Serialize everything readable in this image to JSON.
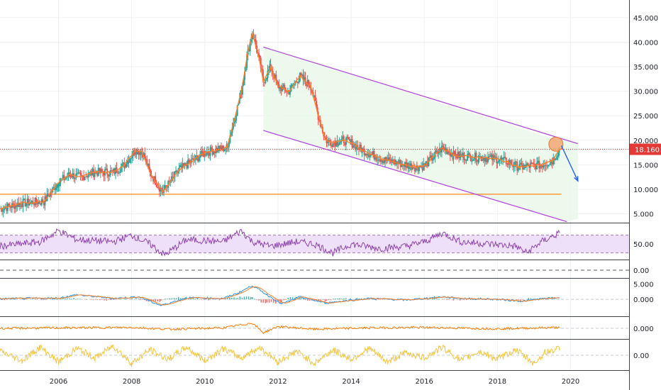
{
  "chart_data": {
    "type": "line",
    "title": "",
    "x_ticks": [
      "2006",
      "2008",
      "2010",
      "2012",
      "2014",
      "2016",
      "2018",
      "2020"
    ],
    "x_tick_values": [
      2006,
      2008,
      2010,
      2012,
      2014,
      2016,
      2018,
      2020
    ],
    "xlim": [
      2004.4,
      2021.6
    ],
    "price_panel": {
      "ylim": [
        3.2,
        48.6
      ],
      "y_ticks": [
        5,
        10,
        15,
        20,
        25,
        30,
        35,
        40,
        45
      ],
      "y_tick_labels": [
        "5.000",
        "10.000",
        "15.000",
        "20.000",
        "25.000",
        "30.000",
        "35.000",
        "40.000",
        "45.000"
      ],
      "last_price": 18.16,
      "last_price_label": "18.160",
      "series": [
        {
          "x": [
            2004.4,
            2005.0,
            2005.6,
            2006.0,
            2006.3,
            2006.6,
            2007.0,
            2007.5,
            2007.8,
            2008.1,
            2008.3,
            2008.5,
            2008.7,
            2008.85,
            2009.0,
            2009.3,
            2009.6,
            2010.0,
            2010.3,
            2010.6,
            2010.8,
            2011.0,
            2011.15,
            2011.3,
            2011.5,
            2011.6,
            2011.8,
            2012.0,
            2012.3,
            2012.6,
            2012.9,
            2013.1,
            2013.3,
            2013.5,
            2013.8,
            2014.0,
            2014.3,
            2014.6,
            2014.9,
            2015.2,
            2015.5,
            2015.8,
            2016.0,
            2016.3,
            2016.5,
            2016.8,
            2017.0,
            2017.5,
            2018.0,
            2018.3,
            2018.6,
            2018.9,
            2019.2,
            2019.5,
            2019.7
          ],
          "values": [
            6.0,
            7.2,
            7.5,
            11.5,
            13.0,
            12.5,
            13.5,
            13.5,
            15.0,
            18.0,
            17.5,
            13.5,
            11.0,
            9.5,
            11.0,
            14.0,
            15.5,
            17.5,
            18.0,
            18.5,
            24.0,
            30.0,
            37.0,
            42.0,
            36.0,
            32.0,
            35.0,
            31.0,
            30.0,
            33.0,
            31.0,
            25.0,
            20.0,
            19.5,
            20.0,
            19.5,
            18.0,
            17.0,
            16.0,
            15.5,
            15.0,
            14.5,
            14.8,
            17.0,
            18.5,
            17.0,
            16.8,
            16.5,
            16.2,
            15.5,
            14.5,
            14.8,
            15.0,
            15.8,
            18.16
          ]
        }
      ],
      "horizontal_line_value": 9.0,
      "channel_upper": [
        [
          2011.6,
          39.0
        ],
        [
          2020.2,
          19.3
        ]
      ],
      "channel_lower": [
        [
          2011.6,
          22.0
        ],
        [
          2019.9,
          3.4
        ]
      ],
      "projection_arrow": [
        [
          2019.75,
          18.9
        ],
        [
          2020.2,
          11.7
        ]
      ],
      "highlight_point": [
        2019.6,
        19.2
      ]
    },
    "rsi_panel": {
      "ylim": [
        15,
        95
      ],
      "y_ticks": [
        50
      ],
      "y_tick_labels": [
        "50.00"
      ],
      "band": [
        30,
        70
      ],
      "x": [
        2004.4,
        2005.5,
        2006.0,
        2006.5,
        2007.5,
        2008.0,
        2008.5,
        2008.9,
        2009.5,
        2010.5,
        2011.0,
        2011.3,
        2011.8,
        2012.5,
        2013.0,
        2013.5,
        2014.0,
        2014.8,
        2015.5,
        2016.0,
        2016.5,
        2017.0,
        2017.8,
        2018.5,
        2018.8,
        2019.2,
        2019.7
      ],
      "values": [
        45,
        55,
        80,
        60,
        55,
        70,
        50,
        25,
        60,
        55,
        80,
        55,
        45,
        55,
        50,
        30,
        50,
        40,
        45,
        55,
        75,
        55,
        50,
        45,
        30,
        55,
        75
      ]
    },
    "zero_panel": {
      "y_ticks": [
        0
      ],
      "y_tick_labels": [
        "0.00"
      ]
    },
    "macd_panel": {
      "ylim": [
        -5.5,
        6.5
      ],
      "y_ticks": [
        5,
        0
      ],
      "y_tick_labels": [
        "5.000",
        "0.000"
      ],
      "x": [
        2004.4,
        2006.0,
        2006.5,
        2007.5,
        2008.2,
        2008.8,
        2009.5,
        2010.5,
        2010.9,
        2011.3,
        2011.7,
        2012.1,
        2012.6,
        2013.3,
        2013.8,
        2014.5,
        2015.5,
        2016.5,
        2017.0,
        2018.0,
        2018.7,
        2019.2,
        2019.7
      ],
      "values": [
        0.2,
        0.4,
        1.5,
        0.3,
        0.8,
        -2.0,
        0.5,
        0.3,
        2.0,
        4.5,
        1.5,
        -1.5,
        0.8,
        -1.2,
        -0.5,
        0.3,
        -0.2,
        0.8,
        0.3,
        0.0,
        -0.6,
        0.2,
        0.6
      ]
    },
    "osc_panel": {
      "y_ticks": [
        0
      ],
      "y_tick_labels": [
        "0.000"
      ],
      "x": [
        2004.4,
        2006.0,
        2008.0,
        2009.0,
        2010.5,
        2011.3,
        2011.6,
        2012.0,
        2013.0,
        2014.5,
        2016.0,
        2018.0,
        2019.7
      ],
      "values": [
        0.0,
        0.05,
        0.1,
        -0.1,
        0.05,
        0.6,
        -0.5,
        0.2,
        -0.1,
        0.05,
        0.1,
        -0.05,
        0.1
      ]
    },
    "stoch_panel": {
      "y_ticks": [
        0
      ],
      "y_tick_labels": [
        "0.00"
      ],
      "x": [
        2004.4,
        2005.0,
        2005.5,
        2006.0,
        2006.5,
        2007.0,
        2007.5,
        2008.0,
        2008.5,
        2009.0,
        2009.5,
        2010.0,
        2010.5,
        2011.0,
        2011.5,
        2012.0,
        2012.5,
        2013.0,
        2013.5,
        2014.0,
        2014.5,
        2015.0,
        2015.5,
        2016.0,
        2016.5,
        2017.0,
        2017.5,
        2018.0,
        2018.5,
        2019.0,
        2019.3,
        2019.7
      ],
      "values": [
        0.3,
        -0.4,
        0.6,
        -0.5,
        0.5,
        -0.2,
        0.7,
        -0.6,
        0.4,
        -0.3,
        0.6,
        -0.4,
        0.5,
        -0.2,
        0.6,
        -0.5,
        0.3,
        -0.6,
        0.4,
        -0.3,
        0.5,
        -0.5,
        0.2,
        -0.2,
        0.6,
        -0.4,
        0.3,
        -0.3,
        0.4,
        -0.6,
        0.2,
        0.5
      ]
    }
  }
}
